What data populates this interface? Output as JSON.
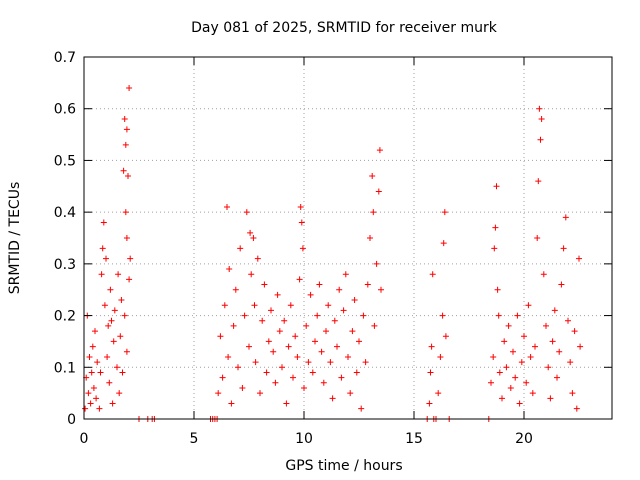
{
  "chart_data": {
    "type": "scatter",
    "title": "Day 081 of 2025, SRMTID for receiver murk",
    "xlabel": "GPS time / hours",
    "ylabel": "SRMTID / TECUs",
    "xlim": [
      0,
      24
    ],
    "ylim": [
      0,
      0.7
    ],
    "xticks": [
      0,
      5,
      10,
      15,
      20
    ],
    "yticks": [
      0,
      0.1,
      0.2,
      0.3,
      0.4,
      0.5,
      0.6,
      0.7
    ],
    "xtick_labels": [
      "0",
      "5",
      "10",
      "15",
      "20"
    ],
    "ytick_labels": [
      "0",
      "0.1",
      "0.2",
      "0.3",
      "0.4",
      "0.5",
      "0.6",
      "0.7"
    ],
    "grid": true,
    "marker": "plus",
    "color": "#ff0000",
    "point_marker": "+",
    "series": [
      {
        "name": "SRMTID",
        "points": [
          [
            0.05,
            0.02
          ],
          [
            0.1,
            0.08
          ],
          [
            0.15,
            0.2
          ],
          [
            0.2,
            0.05
          ],
          [
            0.25,
            0.12
          ],
          [
            0.3,
            0.03
          ],
          [
            0.35,
            0.09
          ],
          [
            0.4,
            0.14
          ],
          [
            0.45,
            0.06
          ],
          [
            0.5,
            0.17
          ],
          [
            0.55,
            0.04
          ],
          [
            0.6,
            0.11
          ],
          [
            0.7,
            0.02
          ],
          [
            0.75,
            0.09
          ],
          [
            0.8,
            0.28
          ],
          [
            0.85,
            0.33
          ],
          [
            0.9,
            0.38
          ],
          [
            0.95,
            0.22
          ],
          [
            1.0,
            0.31
          ],
          [
            1.05,
            0.12
          ],
          [
            1.1,
            0.18
          ],
          [
            1.15,
            0.07
          ],
          [
            1.2,
            0.25
          ],
          [
            1.25,
            0.19
          ],
          [
            1.3,
            0.03
          ],
          [
            1.35,
            0.15
          ],
          [
            1.4,
            0.21
          ],
          [
            1.5,
            0.1
          ],
          [
            1.55,
            0.28
          ],
          [
            1.6,
            0.05
          ],
          [
            1.65,
            0.16
          ],
          [
            1.7,
            0.23
          ],
          [
            1.8,
            0.48
          ],
          [
            1.85,
            0.58
          ],
          [
            1.9,
            0.4
          ],
          [
            1.9,
            0.53
          ],
          [
            1.95,
            0.35
          ],
          [
            1.95,
            0.56
          ],
          [
            2.0,
            0.47
          ],
          [
            2.05,
            0.64
          ],
          [
            2.05,
            0.27
          ],
          [
            2.1,
            0.31
          ],
          [
            1.85,
            0.2
          ],
          [
            1.75,
            0.09
          ],
          [
            1.95,
            0.13
          ],
          [
            2.5,
            0.0
          ],
          [
            2.9,
            0.0
          ],
          [
            3.1,
            0.0
          ],
          [
            3.2,
            0.0
          ],
          [
            5.75,
            0.0
          ],
          [
            5.85,
            0.0
          ],
          [
            5.95,
            0.0
          ],
          [
            6.05,
            0.0
          ],
          [
            6.1,
            0.05
          ],
          [
            6.2,
            0.16
          ],
          [
            6.3,
            0.08
          ],
          [
            6.4,
            0.22
          ],
          [
            6.5,
            0.41
          ],
          [
            6.55,
            0.12
          ],
          [
            6.6,
            0.29
          ],
          [
            6.7,
            0.03
          ],
          [
            6.8,
            0.18
          ],
          [
            6.9,
            0.25
          ],
          [
            7.0,
            0.1
          ],
          [
            7.1,
            0.33
          ],
          [
            7.2,
            0.06
          ],
          [
            7.3,
            0.2
          ],
          [
            7.4,
            0.4
          ],
          [
            7.5,
            0.14
          ],
          [
            7.55,
            0.36
          ],
          [
            7.6,
            0.28
          ],
          [
            7.7,
            0.35
          ],
          [
            7.75,
            0.22
          ],
          [
            7.8,
            0.11
          ],
          [
            7.9,
            0.31
          ],
          [
            8.0,
            0.05
          ],
          [
            8.1,
            0.19
          ],
          [
            8.2,
            0.26
          ],
          [
            8.3,
            0.09
          ],
          [
            8.4,
            0.15
          ],
          [
            8.5,
            0.21
          ],
          [
            8.6,
            0.13
          ],
          [
            8.7,
            0.07
          ],
          [
            8.8,
            0.24
          ],
          [
            8.9,
            0.17
          ],
          [
            9.0,
            0.1
          ],
          [
            9.1,
            0.19
          ],
          [
            9.2,
            0.03
          ],
          [
            9.3,
            0.14
          ],
          [
            9.4,
            0.22
          ],
          [
            9.5,
            0.08
          ],
          [
            9.6,
            0.16
          ],
          [
            9.7,
            0.12
          ],
          [
            9.8,
            0.27
          ],
          [
            9.85,
            0.41
          ],
          [
            9.9,
            0.38
          ],
          [
            9.95,
            0.33
          ],
          [
            10.0,
            0.06
          ],
          [
            10.1,
            0.18
          ],
          [
            10.2,
            0.11
          ],
          [
            10.3,
            0.24
          ],
          [
            10.4,
            0.09
          ],
          [
            10.5,
            0.15
          ],
          [
            10.6,
            0.2
          ],
          [
            10.7,
            0.26
          ],
          [
            10.8,
            0.13
          ],
          [
            10.9,
            0.07
          ],
          [
            11.0,
            0.17
          ],
          [
            11.1,
            0.22
          ],
          [
            11.2,
            0.11
          ],
          [
            11.3,
            0.04
          ],
          [
            11.4,
            0.19
          ],
          [
            11.5,
            0.14
          ],
          [
            11.6,
            0.25
          ],
          [
            11.7,
            0.08
          ],
          [
            11.8,
            0.21
          ],
          [
            11.9,
            0.28
          ],
          [
            12.0,
            0.12
          ],
          [
            12.1,
            0.05
          ],
          [
            12.2,
            0.17
          ],
          [
            12.3,
            0.23
          ],
          [
            12.4,
            0.09
          ],
          [
            12.5,
            0.15
          ],
          [
            12.6,
            0.02
          ],
          [
            12.7,
            0.2
          ],
          [
            12.8,
            0.11
          ],
          [
            12.9,
            0.26
          ],
          [
            13.0,
            0.35
          ],
          [
            13.1,
            0.47
          ],
          [
            13.15,
            0.4
          ],
          [
            13.2,
            0.18
          ],
          [
            13.3,
            0.3
          ],
          [
            13.4,
            0.44
          ],
          [
            13.45,
            0.52
          ],
          [
            13.5,
            0.25
          ],
          [
            15.6,
            0.0
          ],
          [
            15.7,
            0.03
          ],
          [
            15.75,
            0.09
          ],
          [
            15.8,
            0.14
          ],
          [
            15.85,
            0.28
          ],
          [
            15.9,
            0.0
          ],
          [
            16.0,
            0.0
          ],
          [
            16.1,
            0.05
          ],
          [
            16.2,
            0.12
          ],
          [
            16.3,
            0.2
          ],
          [
            16.35,
            0.34
          ],
          [
            16.4,
            0.4
          ],
          [
            16.45,
            0.16
          ],
          [
            16.6,
            0.0
          ],
          [
            18.4,
            0.0
          ],
          [
            18.5,
            0.07
          ],
          [
            18.6,
            0.12
          ],
          [
            18.65,
            0.33
          ],
          [
            18.7,
            0.37
          ],
          [
            18.75,
            0.45
          ],
          [
            18.8,
            0.25
          ],
          [
            18.85,
            0.2
          ],
          [
            18.9,
            0.09
          ],
          [
            19.0,
            0.04
          ],
          [
            19.1,
            0.15
          ],
          [
            19.2,
            0.1
          ],
          [
            19.3,
            0.18
          ],
          [
            19.4,
            0.06
          ],
          [
            19.5,
            0.13
          ],
          [
            19.6,
            0.08
          ],
          [
            19.7,
            0.2
          ],
          [
            19.8,
            0.03
          ],
          [
            19.9,
            0.11
          ],
          [
            20.0,
            0.16
          ],
          [
            20.1,
            0.07
          ],
          [
            20.2,
            0.22
          ],
          [
            20.3,
            0.12
          ],
          [
            20.4,
            0.05
          ],
          [
            20.5,
            0.14
          ],
          [
            20.6,
            0.35
          ],
          [
            20.65,
            0.46
          ],
          [
            20.7,
            0.6
          ],
          [
            20.75,
            0.54
          ],
          [
            20.8,
            0.58
          ],
          [
            20.9,
            0.28
          ],
          [
            21.0,
            0.18
          ],
          [
            21.1,
            0.1
          ],
          [
            21.2,
            0.04
          ],
          [
            21.3,
            0.15
          ],
          [
            21.4,
            0.21
          ],
          [
            21.5,
            0.08
          ],
          [
            21.6,
            0.13
          ],
          [
            21.7,
            0.26
          ],
          [
            21.8,
            0.33
          ],
          [
            21.9,
            0.39
          ],
          [
            22.0,
            0.19
          ],
          [
            22.1,
            0.11
          ],
          [
            22.2,
            0.05
          ],
          [
            22.3,
            0.17
          ],
          [
            22.4,
            0.02
          ],
          [
            22.5,
            0.31
          ],
          [
            22.55,
            0.14
          ]
        ]
      }
    ]
  }
}
